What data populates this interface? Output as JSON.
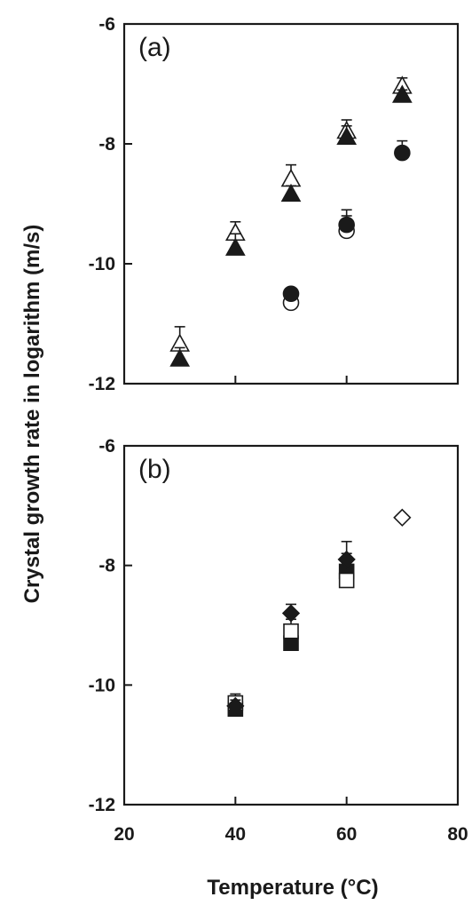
{
  "figure": {
    "ylabel": "Crystal growth rate in logarithm (m/s)",
    "xlabel": "Temperature (°C)"
  },
  "chart_data": [
    {
      "type": "scatter",
      "panel_label": "(a)",
      "xlim": [
        20,
        80
      ],
      "ylim": [
        -12,
        -6
      ],
      "x_ticks": [
        20,
        40,
        60,
        80
      ],
      "y_ticks": [
        -12,
        -10,
        -8,
        -6
      ],
      "x_tick_labels_shown": false,
      "y_tick_labels": [
        "-12",
        "-10",
        "-8",
        "-6"
      ],
      "grid": false,
      "series": [
        {
          "marker": "triangle-open",
          "color": "#1a1a1a",
          "points": [
            {
              "x": 30,
              "y": -11.35,
              "err": 0.3
            },
            {
              "x": 40,
              "y": -9.5,
              "err": 0.2
            },
            {
              "x": 50,
              "y": -8.6,
              "err": 0.25
            },
            {
              "x": 60,
              "y": -7.8,
              "err": 0.2
            },
            {
              "x": 70,
              "y": -7.05,
              "err": 0.15
            }
          ]
        },
        {
          "marker": "triangle-filled",
          "color": "#1a1a1a",
          "points": [
            {
              "x": 30,
              "y": -11.6,
              "err": 0.2
            },
            {
              "x": 40,
              "y": -9.75,
              "err": 0.25
            },
            {
              "x": 50,
              "y": -8.85,
              "err": 0.15
            },
            {
              "x": 60,
              "y": -7.9,
              "err": 0.2
            },
            {
              "x": 70,
              "y": -7.2,
              "err": 0.1
            }
          ]
        },
        {
          "marker": "circle-open",
          "color": "#1a1a1a",
          "points": [
            {
              "x": 50,
              "y": -10.65,
              "err": 0
            },
            {
              "x": 60,
              "y": -9.45,
              "err": 0.25
            }
          ]
        },
        {
          "marker": "circle-filled",
          "color": "#1a1a1a",
          "points": [
            {
              "x": 50,
              "y": -10.5,
              "err": 0
            },
            {
              "x": 60,
              "y": -9.35,
              "err": 0.25
            },
            {
              "x": 70,
              "y": -8.15,
              "err": 0.2
            }
          ]
        }
      ]
    },
    {
      "type": "scatter",
      "panel_label": "(b)",
      "xlim": [
        20,
        80
      ],
      "ylim": [
        -12,
        -6
      ],
      "x_ticks": [
        20,
        40,
        60,
        80
      ],
      "y_ticks": [
        -12,
        -10,
        -8,
        -6
      ],
      "x_tick_labels": [
        "20",
        "40",
        "60",
        "80"
      ],
      "y_tick_labels": [
        "-12",
        "-10",
        "-8",
        "-6"
      ],
      "grid": false,
      "series": [
        {
          "marker": "square-filled",
          "color": "#1a1a1a",
          "points": [
            {
              "x": 40,
              "y": -10.4,
              "err": 0.2
            },
            {
              "x": 50,
              "y": -9.3,
              "err": 0.15
            },
            {
              "x": 60,
              "y": -8.1,
              "err": 0.3
            }
          ]
        },
        {
          "marker": "square-open",
          "color": "#1a1a1a",
          "points": [
            {
              "x": 40,
              "y": -10.3,
              "err": 0.15
            },
            {
              "x": 50,
              "y": -9.1,
              "err": 0.2
            },
            {
              "x": 60,
              "y": -8.25,
              "err": 0.2
            }
          ]
        },
        {
          "marker": "diamond-filled",
          "color": "#1a1a1a",
          "points": [
            {
              "x": 40,
              "y": -10.35,
              "err": 0.1
            },
            {
              "x": 50,
              "y": -8.8,
              "err": 0.15
            },
            {
              "x": 60,
              "y": -7.9,
              "err": 0.3
            }
          ]
        },
        {
          "marker": "diamond-open",
          "color": "#1a1a1a",
          "points": [
            {
              "x": 70,
              "y": -7.2,
              "err": 0
            }
          ]
        }
      ]
    }
  ]
}
